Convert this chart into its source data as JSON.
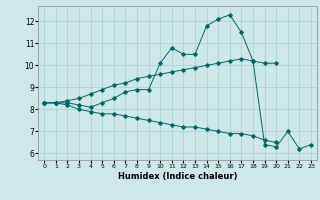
{
  "title": "",
  "xlabel": "Humidex (Indice chaleur)",
  "bg_color": "#cce8e8",
  "grid_color": "#aad4d4",
  "line_color": "#006666",
  "ylim": [
    5.7,
    12.7
  ],
  "xlim": [
    -0.5,
    23.5
  ],
  "yticks": [
    6,
    7,
    8,
    9,
    10,
    11,
    12
  ],
  "xticks": [
    0,
    1,
    2,
    3,
    4,
    5,
    6,
    7,
    8,
    9,
    10,
    11,
    12,
    13,
    14,
    15,
    16,
    17,
    18,
    19,
    20,
    21,
    22,
    23
  ],
  "series1_x": [
    0,
    1,
    2,
    3,
    4,
    5,
    6,
    7,
    8,
    9,
    10,
    11,
    12,
    13,
    14,
    15,
    16,
    17,
    18,
    19,
    20,
    21,
    22,
    23
  ],
  "series1_y": [
    8.3,
    8.3,
    8.3,
    8.2,
    8.1,
    8.3,
    8.5,
    8.8,
    8.9,
    8.9,
    10.1,
    10.8,
    10.5,
    10.5,
    11.8,
    12.1,
    12.3,
    11.5,
    10.2,
    6.4,
    6.3,
    7.0,
    6.2,
    6.4
  ],
  "series2_x": [
    0,
    1,
    2,
    3,
    4,
    5,
    6,
    7,
    8,
    9,
    10,
    11,
    12,
    13,
    14,
    15,
    16,
    17,
    18,
    19,
    20
  ],
  "series2_y": [
    8.3,
    8.3,
    8.4,
    8.5,
    8.7,
    8.9,
    9.1,
    9.2,
    9.4,
    9.5,
    9.6,
    9.7,
    9.8,
    9.9,
    10.0,
    10.1,
    10.2,
    10.3,
    10.2,
    10.1,
    10.1
  ],
  "series3_x": [
    0,
    1,
    2,
    3,
    4,
    5,
    6,
    7,
    8,
    9,
    10,
    11,
    12,
    13,
    14,
    15,
    16,
    17,
    18,
    19,
    20
  ],
  "series3_y": [
    8.3,
    8.3,
    8.2,
    8.0,
    7.9,
    7.8,
    7.8,
    7.7,
    7.6,
    7.5,
    7.4,
    7.3,
    7.2,
    7.2,
    7.1,
    7.0,
    6.9,
    6.9,
    6.8,
    6.6,
    6.5
  ]
}
